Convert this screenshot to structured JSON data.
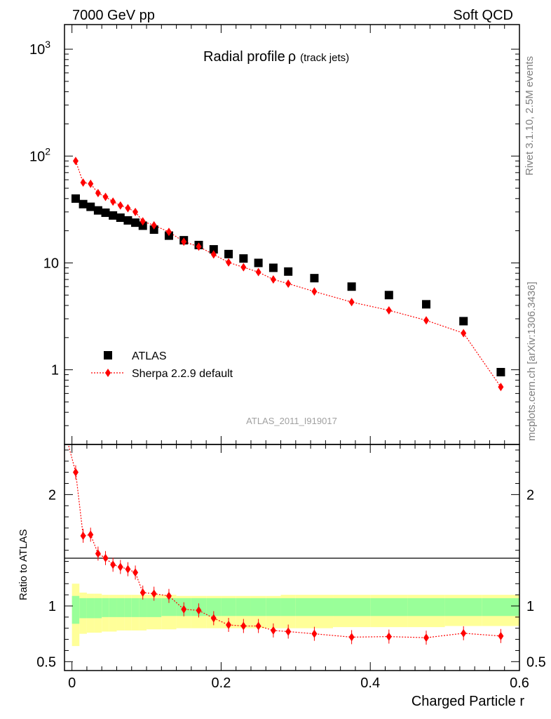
{
  "header": {
    "left": "7000 GeV pp",
    "right": "Soft QCD"
  },
  "side_labels": {
    "rivet": "Rivet 3.1.10,  2.5M events",
    "mcplots": "mcplots.cern.ch [arXiv:1306.3436]"
  },
  "chart_data": [
    {
      "type": "scatter",
      "title": "Radial profile",
      "title_symbol": "ρ",
      "title_suffix": "(track jets)",
      "analysis_tag": "ATLAS_2011_I919017",
      "yscale": "log",
      "ylim": [
        0.2,
        1700
      ],
      "xlim": [
        -0.01,
        0.6
      ],
      "y_ticks": [
        {
          "value": 1,
          "label": "1"
        },
        {
          "value": 10,
          "label": "10"
        },
        {
          "value": 100,
          "label": "10",
          "sup": "2"
        },
        {
          "value": 1000,
          "label": "10",
          "sup": "3"
        }
      ],
      "legend_position": "bottom-left",
      "series": [
        {
          "name": "ATLAS",
          "marker": "square",
          "color": "#000000",
          "x": [
            0.005,
            0.015,
            0.025,
            0.035,
            0.045,
            0.055,
            0.065,
            0.075,
            0.085,
            0.095,
            0.11,
            0.13,
            0.15,
            0.17,
            0.19,
            0.21,
            0.23,
            0.25,
            0.27,
            0.29,
            0.325,
            0.375,
            0.425,
            0.475,
            0.525,
            0.575
          ],
          "y": [
            40.0,
            35.5,
            33.5,
            31.0,
            29.5,
            27.8,
            26.5,
            25.0,
            23.8,
            22.3,
            20.5,
            18.0,
            16.3,
            14.7,
            13.4,
            12.1,
            11.0,
            10.0,
            9.0,
            8.3,
            7.2,
            6.0,
            5.0,
            4.1,
            2.85,
            0.95
          ]
        },
        {
          "name": "Sherpa 2.2.9 default",
          "marker": "diamond",
          "line": "dotted",
          "color": "#ff0000",
          "x": [
            0.005,
            0.015,
            0.025,
            0.035,
            0.045,
            0.055,
            0.065,
            0.075,
            0.085,
            0.095,
            0.11,
            0.13,
            0.15,
            0.17,
            0.19,
            0.21,
            0.23,
            0.25,
            0.27,
            0.29,
            0.325,
            0.375,
            0.425,
            0.475,
            0.525,
            0.575
          ],
          "y": [
            90.0,
            56.5,
            55.0,
            45.0,
            41.5,
            37.5,
            34.5,
            32.5,
            30.0,
            24.5,
            22.5,
            19.5,
            15.8,
            14.2,
            12.0,
            10.1,
            9.1,
            8.2,
            7.0,
            6.4,
            5.4,
            4.3,
            3.6,
            2.9,
            2.2,
            0.69
          ]
        }
      ]
    },
    {
      "type": "scatter",
      "ylabel": "Ratio to ATLAS",
      "xlabel": "Charged Particle r",
      "ylim": [
        0.42,
        2.45
      ],
      "xlim": [
        -0.01,
        0.6
      ],
      "y_ticks": [
        {
          "value": 0.5,
          "label": "0.5"
        },
        {
          "value": 1,
          "label": "1"
        },
        {
          "value": 2,
          "label": "2"
        }
      ],
      "x_ticks": [
        {
          "value": 0,
          "label": "0"
        },
        {
          "value": 0.2,
          "label": "0.2"
        },
        {
          "value": 0.4,
          "label": "0.4"
        },
        {
          "value": 0.6,
          "label": "0.6"
        }
      ],
      "reference_line": 1,
      "bins": [
        [
          0.0,
          0.01
        ],
        [
          0.01,
          0.02
        ],
        [
          0.02,
          0.03
        ],
        [
          0.03,
          0.04
        ],
        [
          0.04,
          0.05
        ],
        [
          0.05,
          0.06
        ],
        [
          0.06,
          0.07
        ],
        [
          0.07,
          0.08
        ],
        [
          0.08,
          0.09
        ],
        [
          0.09,
          0.1
        ],
        [
          0.1,
          0.12
        ],
        [
          0.12,
          0.14
        ],
        [
          0.14,
          0.16
        ],
        [
          0.16,
          0.18
        ],
        [
          0.18,
          0.2
        ],
        [
          0.2,
          0.22
        ],
        [
          0.22,
          0.24
        ],
        [
          0.24,
          0.26
        ],
        [
          0.26,
          0.28
        ],
        [
          0.28,
          0.3
        ],
        [
          0.3,
          0.35
        ],
        [
          0.35,
          0.4
        ],
        [
          0.4,
          0.45
        ],
        [
          0.45,
          0.5
        ],
        [
          0.5,
          0.55
        ],
        [
          0.55,
          0.6
        ]
      ],
      "band_total": {
        "color": "#ffff99",
        "low": [
          0.64,
          0.75,
          0.76,
          0.76,
          0.77,
          0.77,
          0.78,
          0.78,
          0.78,
          0.78,
          0.79,
          0.79,
          0.8,
          0.8,
          0.8,
          0.8,
          0.8,
          0.8,
          0.8,
          0.8,
          0.8,
          0.81,
          0.81,
          0.81,
          0.82,
          0.82
        ],
        "high": [
          1.2,
          1.12,
          1.11,
          1.11,
          1.1,
          1.1,
          1.1,
          1.1,
          1.1,
          1.1,
          1.1,
          1.1,
          1.09,
          1.09,
          1.09,
          1.09,
          1.09,
          1.09,
          1.09,
          1.1,
          1.1,
          1.1,
          1.1,
          1.1,
          1.1,
          1.1
        ]
      },
      "band_stat": {
        "color": "#99ff99",
        "low": [
          0.84,
          0.89,
          0.89,
          0.89,
          0.9,
          0.9,
          0.9,
          0.9,
          0.9,
          0.9,
          0.9,
          0.91,
          0.91,
          0.91,
          0.91,
          0.91,
          0.91,
          0.91,
          0.91,
          0.91,
          0.91,
          0.91,
          0.91,
          0.91,
          0.91,
          0.91
        ],
        "high": [
          1.09,
          1.07,
          1.07,
          1.07,
          1.07,
          1.07,
          1.07,
          1.07,
          1.07,
          1.07,
          1.07,
          1.07,
          1.07,
          1.07,
          1.07,
          1.07,
          1.07,
          1.07,
          1.07,
          1.07,
          1.07,
          1.07,
          1.07,
          1.07,
          1.07,
          1.07
        ]
      },
      "series": [
        {
          "name": "Sherpa 2.2.9 default",
          "marker": "diamond",
          "line": "dotted",
          "color": "#ff0000",
          "x": [
            0.005,
            0.015,
            0.025,
            0.035,
            0.045,
            0.055,
            0.065,
            0.075,
            0.085,
            0.095,
            0.11,
            0.13,
            0.15,
            0.17,
            0.19,
            0.21,
            0.23,
            0.25,
            0.27,
            0.29,
            0.325,
            0.375,
            0.425,
            0.475,
            0.525,
            0.575
          ],
          "y": [
            2.2,
            1.63,
            1.64,
            1.47,
            1.43,
            1.37,
            1.35,
            1.33,
            1.3,
            1.12,
            1.11,
            1.09,
            0.97,
            0.96,
            0.89,
            0.83,
            0.82,
            0.82,
            0.78,
            0.77,
            0.75,
            0.72,
            0.725,
            0.715,
            0.755,
            0.73
          ]
        }
      ]
    }
  ]
}
